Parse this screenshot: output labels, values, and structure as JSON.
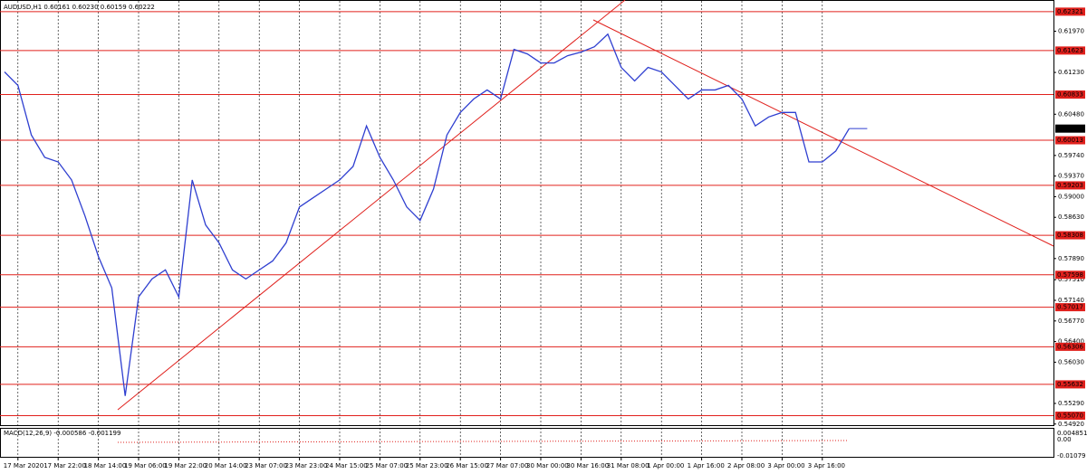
{
  "chart_data": {
    "type": "line",
    "title": "AUDUSD,H1  0.60161 0.60230 0.60159 0.60222",
    "categories": [
      null,
      "17 Mar 2020",
      null,
      null,
      "17 Mar 22:00",
      null,
      null,
      "18 Mar 14:00",
      null,
      null,
      "19 Mar 06:00",
      null,
      null,
      "19 Mar 22:00",
      null,
      null,
      "20 Mar 14:00",
      null,
      null,
      "23 Mar 07:00",
      null,
      null,
      "23 Mar 23:00",
      null,
      null,
      "24 Mar 15:00",
      null,
      null,
      "25 Mar 07:00",
      null,
      null,
      "25 Mar 23:00",
      null,
      null,
      "26 Mar 15:00",
      null,
      null,
      "27 Mar 07:00",
      null,
      null,
      "30 Mar 00:00",
      null,
      null,
      "30 Mar 16:00",
      null,
      null,
      "31 Mar 08:00",
      null,
      null,
      "1 Apr 00:00",
      null,
      null,
      "1 Apr 16:00",
      null,
      null,
      "2 Apr 08:00",
      null,
      null,
      "3 Apr 00:00",
      null,
      null,
      "3 Apr 16:00",
      null,
      null
    ],
    "values": [
      0.61239,
      0.60997,
      0.60108,
      0.59705,
      0.59624,
      0.59301,
      0.58655,
      0.57928,
      0.57363,
      0.55425,
      0.57201,
      0.57524,
      0.57686,
      0.57201,
      0.59301,
      0.58493,
      0.58171,
      0.57686,
      0.57524,
      0.57686,
      0.57847,
      0.58171,
      0.58816,
      0.58978,
      0.59139,
      0.59301,
      0.59543,
      0.6027,
      0.59705,
      0.59301,
      0.58816,
      0.58574,
      0.59139,
      0.60108,
      0.60512,
      0.60754,
      0.60916,
      0.60754,
      0.61643,
      0.61562,
      0.614,
      0.614,
      0.6153,
      0.61594,
      0.61691,
      0.61917,
      0.6132,
      0.61077,
      0.6132,
      0.61239,
      0.60997,
      0.60754,
      0.60916,
      0.60916,
      0.60997,
      0.60754,
      0.6027,
      0.60431,
      0.60512,
      0.60512,
      0.59624,
      0.59624,
      0.59818,
      0.60222
    ],
    "color": "#2f3fd0",
    "ylim": [
      0.549,
      0.624
    ],
    "yticks": [
      {
        "value": 0.6197,
        "label": "0.61970"
      },
      {
        "value": 0.6123,
        "label": "0.61230"
      },
      {
        "value": 0.6048,
        "label": "0.60480"
      },
      {
        "value": 0.5974,
        "label": "0.59740"
      },
      {
        "value": 0.5937,
        "label": "0.59370"
      },
      {
        "value": 0.59,
        "label": "0.59000"
      },
      {
        "value": 0.5863,
        "label": "0.58630"
      },
      {
        "value": 0.5789,
        "label": "0.57890"
      },
      {
        "value": 0.5751,
        "label": "0.57510"
      },
      {
        "value": 0.5714,
        "label": "0.57140"
      },
      {
        "value": 0.5677,
        "label": "0.56770"
      },
      {
        "value": 0.564,
        "label": "0.56400"
      },
      {
        "value": 0.5603,
        "label": "0.56030"
      },
      {
        "value": 0.5529,
        "label": "0.55290"
      },
      {
        "value": 0.5492,
        "label": "0.54920"
      }
    ],
    "levels": [
      0.62321,
      0.61623,
      0.60833,
      0.60013,
      0.59203,
      0.58308,
      0.57598,
      0.57017,
      0.56306,
      0.55632,
      {
        "value": 0.5507,
        "label": "0.55070"
      }
    ],
    "level_color": "#e0201c",
    "last": 0.60222,
    "grid": true,
    "macd": {
      "title": "MACD(12,26,9) -0.000586 -0.001199",
      "yticks": [
        "0.004851",
        "0.00",
        "-0.01079"
      ]
    }
  }
}
